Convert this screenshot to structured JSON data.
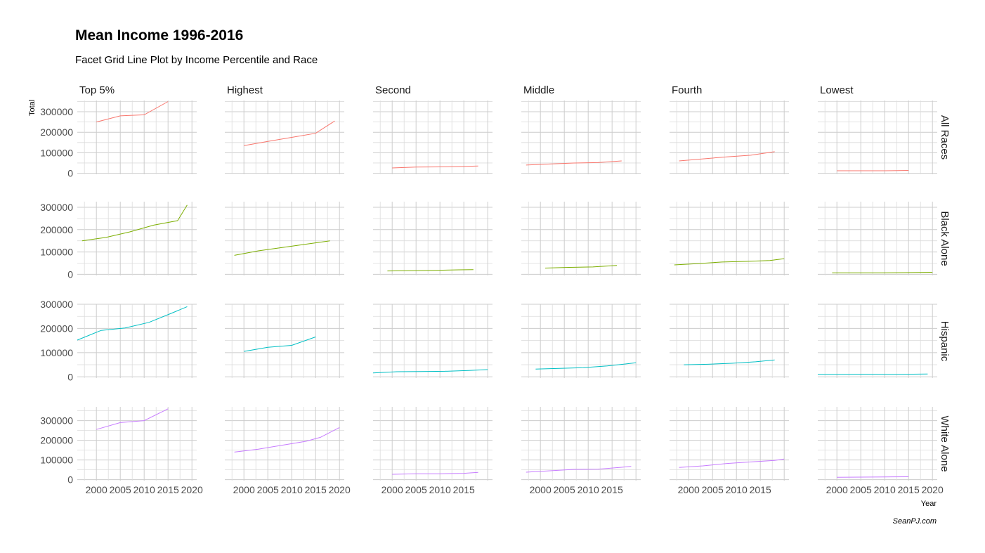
{
  "chart_data": {
    "type": "line",
    "title": "Mean Income 1996-2016",
    "subtitle": "Facet Grid Line Plot by Income Percentile and Race",
    "ylabel": "Total",
    "xlabel": "Year",
    "caption": "SeanPJ.com",
    "x_ticks": [
      "2000",
      "2005",
      "2010",
      "2015",
      "2020"
    ],
    "columns": [
      "Top 5%",
      "Highest",
      "Second",
      "Middle",
      "Fourth",
      "Lowest"
    ],
    "rows": [
      {
        "name": "All Races",
        "color": "#F8766D",
        "y_ticks": [
          "0",
          "100000",
          "200000",
          "300000"
        ],
        "ylim": [
          -5000,
          355000
        ]
      },
      {
        "name": "Black Alone",
        "color": "#7CAE00",
        "y_ticks": [
          "0",
          "100000",
          "200000",
          "300000"
        ],
        "ylim": [
          -5000,
          325000
        ]
      },
      {
        "name": "Hispanic",
        "color": "#00BFC4",
        "y_ticks": [
          "0",
          "100000",
          "200000",
          "300000"
        ],
        "ylim": [
          -5000,
          300000
        ]
      },
      {
        "name": "White Alone",
        "color": "#C77CFF",
        "y_ticks": [
          "0",
          "100000",
          "200000",
          "300000"
        ],
        "ylim": [
          -5000,
          370000
        ]
      }
    ],
    "xlim": [
      1996,
      2021
    ],
    "panels": [
      [
        {
          "x": [
            2000,
            2005,
            2010,
            2015
          ],
          "y": [
            250000,
            280000,
            285000,
            350000
          ]
        },
        {
          "x": [
            2000,
            2005,
            2010,
            2015,
            2019
          ],
          "y": [
            135000,
            155000,
            175000,
            195000,
            255000
          ]
        },
        {
          "x": [
            2000,
            2005,
            2010,
            2015,
            2018
          ],
          "y": [
            26000,
            30000,
            31000,
            33000,
            35000
          ]
        },
        {
          "x": [
            1997,
            2002,
            2007,
            2012,
            2017
          ],
          "y": [
            40000,
            45000,
            50000,
            52000,
            60000
          ]
        },
        {
          "x": [
            1998,
            2003,
            2008,
            2013,
            2018
          ],
          "y": [
            60000,
            70000,
            80000,
            88000,
            105000
          ]
        },
        {
          "x": [
            2000,
            2005,
            2010,
            2015
          ],
          "y": [
            12000,
            12000,
            12000,
            14000
          ]
        }
      ],
      [
        {
          "x": [
            1997,
            2002,
            2007,
            2012,
            2017,
            2019
          ],
          "y": [
            150000,
            165000,
            190000,
            220000,
            240000,
            310000
          ]
        },
        {
          "x": [
            1998,
            2003,
            2008,
            2013,
            2018
          ],
          "y": [
            85000,
            105000,
            120000,
            135000,
            150000
          ]
        },
        {
          "x": [
            1999,
            2004,
            2009,
            2014,
            2017
          ],
          "y": [
            15000,
            16000,
            18000,
            20000,
            21000
          ]
        },
        {
          "x": [
            2001,
            2006,
            2011,
            2016
          ],
          "y": [
            28000,
            31000,
            33000,
            40000
          ]
        },
        {
          "x": [
            1997,
            2002,
            2007,
            2012,
            2017,
            2020
          ],
          "y": [
            42000,
            48000,
            55000,
            58000,
            62000,
            70000
          ]
        },
        {
          "x": [
            1999,
            2004,
            2009,
            2014,
            2020
          ],
          "y": [
            7000,
            7000,
            7000,
            7500,
            9000
          ]
        }
      ],
      [
        {
          "x": [
            1996,
            2001,
            2006,
            2011,
            2016,
            2019
          ],
          "y": [
            152000,
            192000,
            202000,
            225000,
            265000,
            290000
          ]
        },
        {
          "x": [
            2000,
            2005,
            2010,
            2015
          ],
          "y": [
            105000,
            122000,
            130000,
            165000
          ]
        },
        {
          "x": [
            1996,
            2001,
            2006,
            2011,
            2016,
            2020
          ],
          "y": [
            16000,
            21000,
            22000,
            23000,
            26000,
            30000
          ]
        },
        {
          "x": [
            1999,
            2004,
            2009,
            2014,
            2020
          ],
          "y": [
            32000,
            35000,
            38000,
            45000,
            58000
          ]
        },
        {
          "x": [
            1999,
            2004,
            2009,
            2014,
            2018
          ],
          "y": [
            50000,
            52000,
            56000,
            62000,
            70000
          ]
        },
        {
          "x": [
            1996,
            2001,
            2006,
            2011,
            2016,
            2019
          ],
          "y": [
            10000,
            10500,
            11000,
            10000,
            11000,
            11500
          ]
        }
      ],
      [
        {
          "x": [
            2000,
            2005,
            2010,
            2015
          ],
          "y": [
            255000,
            290000,
            300000,
            360000
          ]
        },
        {
          "x": [
            1998,
            2003,
            2008,
            2013,
            2016,
            2020
          ],
          "y": [
            140000,
            155000,
            175000,
            195000,
            215000,
            265000
          ]
        },
        {
          "x": [
            2000,
            2005,
            2010,
            2015,
            2018
          ],
          "y": [
            27000,
            30000,
            30000,
            32000,
            37000
          ]
        },
        {
          "x": [
            1997,
            2002,
            2007,
            2012,
            2017,
            2019
          ],
          "y": [
            38000,
            45000,
            52000,
            53000,
            63000,
            68000
          ]
        },
        {
          "x": [
            1998,
            2003,
            2008,
            2013,
            2018,
            2020
          ],
          "y": [
            62000,
            70000,
            82000,
            90000,
            98000,
            105000
          ]
        },
        {
          "x": [
            2000,
            2005,
            2010,
            2015
          ],
          "y": [
            12000,
            13000,
            14000,
            14500
          ]
        }
      ]
    ]
  }
}
